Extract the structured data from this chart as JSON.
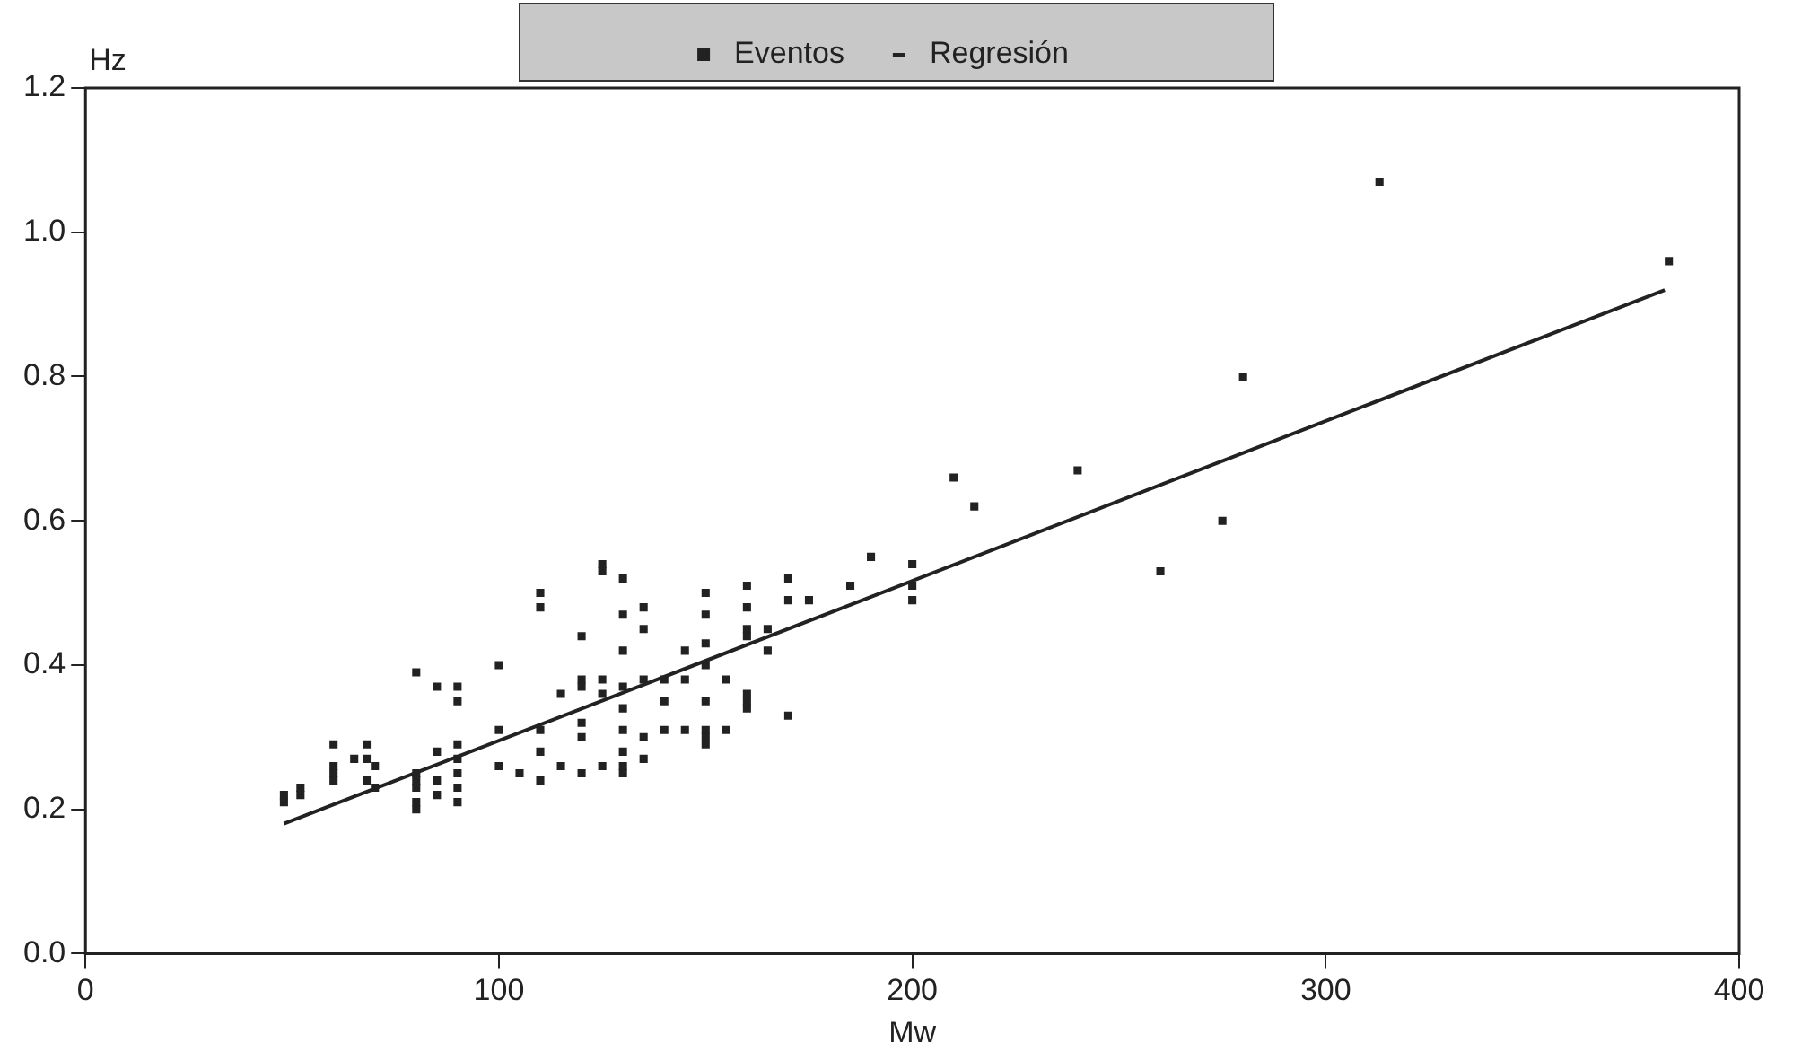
{
  "chart_data": {
    "type": "scatter",
    "xlabel": "Mw",
    "ylabel": "Hz",
    "xlim": [
      0,
      400
    ],
    "ylim": [
      0,
      1.2
    ],
    "xticks": [
      0,
      100,
      200,
      300,
      400
    ],
    "yticks": [
      {
        "value": 0,
        "label": "0.0"
      },
      0.2,
      0.4,
      0.6,
      0.8,
      {
        "value": 1,
        "label": "1.0"
      },
      1.2
    ],
    "grid": false,
    "legend": "top",
    "series": [
      {
        "name": "Eventos",
        "marker": "square",
        "color": "#222222",
        "x": [
          48,
          48,
          52,
          52,
          60,
          60,
          60,
          60,
          65,
          68,
          68,
          68,
          70,
          70,
          80,
          80,
          80,
          80,
          80,
          80,
          85,
          85,
          85,
          85,
          90,
          90,
          90,
          90,
          90,
          90,
          90,
          100,
          100,
          100,
          105,
          110,
          110,
          110,
          110,
          110,
          115,
          115,
          120,
          120,
          120,
          120,
          120,
          120,
          125,
          125,
          125,
          125,
          125,
          130,
          130,
          130,
          130,
          130,
          130,
          130,
          130,
          130,
          135,
          135,
          135,
          135,
          135,
          140,
          140,
          140,
          145,
          145,
          145,
          150,
          150,
          150,
          150,
          150,
          150,
          150,
          150,
          155,
          155,
          160,
          160,
          160,
          160,
          160,
          160,
          160,
          165,
          165,
          170,
          170,
          170,
          175,
          185,
          190,
          200,
          200,
          200,
          210,
          215,
          240,
          260,
          275,
          280,
          313,
          383
        ],
        "values": [
          0.22,
          0.21,
          0.22,
          0.23,
          0.25,
          0.24,
          0.26,
          0.29,
          0.27,
          0.24,
          0.29,
          0.27,
          0.26,
          0.23,
          0.39,
          0.21,
          0.2,
          0.23,
          0.25,
          0.24,
          0.28,
          0.22,
          0.24,
          0.37,
          0.37,
          0.35,
          0.21,
          0.29,
          0.25,
          0.23,
          0.27,
          0.4,
          0.31,
          0.26,
          0.25,
          0.48,
          0.5,
          0.24,
          0.31,
          0.28,
          0.36,
          0.26,
          0.44,
          0.38,
          0.25,
          0.3,
          0.32,
          0.37,
          0.54,
          0.53,
          0.36,
          0.26,
          0.38,
          0.52,
          0.47,
          0.42,
          0.37,
          0.34,
          0.31,
          0.28,
          0.26,
          0.25,
          0.48,
          0.45,
          0.38,
          0.3,
          0.27,
          0.35,
          0.38,
          0.31,
          0.42,
          0.31,
          0.38,
          0.5,
          0.47,
          0.43,
          0.4,
          0.35,
          0.3,
          0.31,
          0.29,
          0.38,
          0.31,
          0.51,
          0.48,
          0.45,
          0.35,
          0.34,
          0.36,
          0.44,
          0.45,
          0.42,
          0.52,
          0.49,
          0.33,
          0.49,
          0.51,
          0.55,
          0.54,
          0.51,
          0.49,
          0.66,
          0.62,
          0.67,
          0.53,
          0.6,
          0.8,
          1.07,
          0.96
        ]
      },
      {
        "name": "Regresión",
        "type": "line",
        "marker": "none",
        "color": "#222222",
        "line_style": "solid",
        "x": [
          48,
          382
        ],
        "values": [
          0.18,
          0.92
        ]
      }
    ]
  }
}
